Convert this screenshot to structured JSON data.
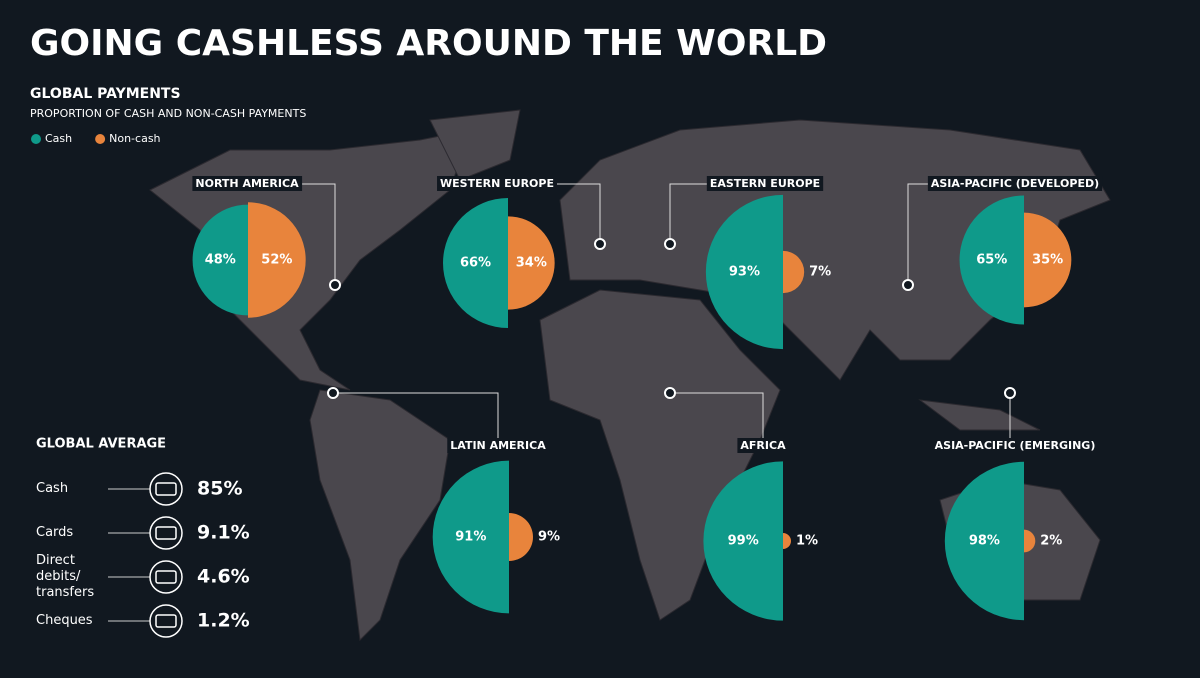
{
  "header": {
    "title": "GOING CASHLESS AROUND THE WORLD"
  },
  "chart_data": [
    {
      "type": "semicircle-pair",
      "title": "GLOBAL PAYMENTS",
      "subtitle": "PROPORTION OF CASH AND NON-CASH PAYMENTS",
      "categories": [
        "NORTH AMERICA",
        "WESTERN EUROPE",
        "EASTERN EUROPE",
        "ASIA-PACIFIC (DEVELOPED)",
        "LATIN AMERICA",
        "AFRICA",
        "ASIA-PACIFIC (EMERGING)"
      ],
      "series": [
        {
          "name": "Cash",
          "color": "#0f9a8a",
          "values": [
            48,
            66,
            93,
            65,
            91,
            99,
            98
          ],
          "value_labels": [
            "48%",
            "66%",
            "93%",
            "65%",
            "91%",
            "99%",
            "98%"
          ]
        },
        {
          "name": "Non-cash",
          "color": "#e8843c",
          "values": [
            52,
            34,
            7,
            35,
            9,
            1,
            2
          ],
          "value_labels": [
            "52%",
            "34%",
            "7%",
            "35%",
            "9%",
            "1%",
            "2%"
          ]
        }
      ]
    },
    {
      "type": "list",
      "title": "GLOBAL AVERAGE",
      "categories": [
        "Cash",
        "Cards",
        "Direct debits/ transfers",
        "Cheques"
      ],
      "values": [
        85,
        9.1,
        4.6,
        1.2
      ],
      "value_labels": [
        "85%",
        "9.1%",
        "4.6%",
        "1.2%"
      ]
    }
  ]
}
